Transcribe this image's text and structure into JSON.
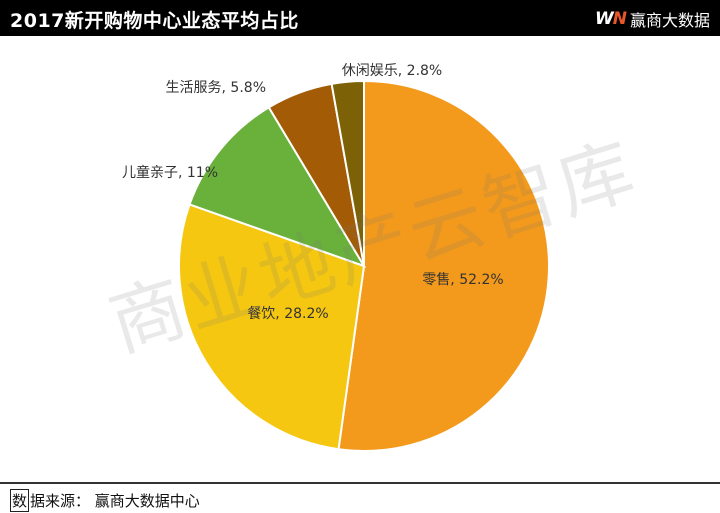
{
  "header": {
    "title": "2017新开购物中心业态平均占比",
    "brand_logo": "WN",
    "brand_name": "赢商大数据"
  },
  "watermark": "商业地产云智库",
  "footer": {
    "source_prefix": "数",
    "source_rest": "据来源：  赢商大数据中心"
  },
  "chart_data": {
    "type": "pie",
    "title": "2017新开购物中心业态平均占比",
    "categories": [
      "零售",
      "餐饮",
      "儿童亲子",
      "生活服务",
      "休闲娱乐"
    ],
    "values": [
      52.2,
      28.2,
      11,
      5.8,
      2.8
    ],
    "labels": [
      "零售, 52.2%",
      "餐饮, 28.2%",
      "儿童亲子, 11%",
      "生活服务, 5.8%",
      "休闲娱乐, 2.8%"
    ],
    "colors": [
      "#f39a1c",
      "#f5c711",
      "#6ab13c",
      "#a35b05",
      "#7d6107"
    ],
    "start": "12 o'clock, clockwise"
  }
}
